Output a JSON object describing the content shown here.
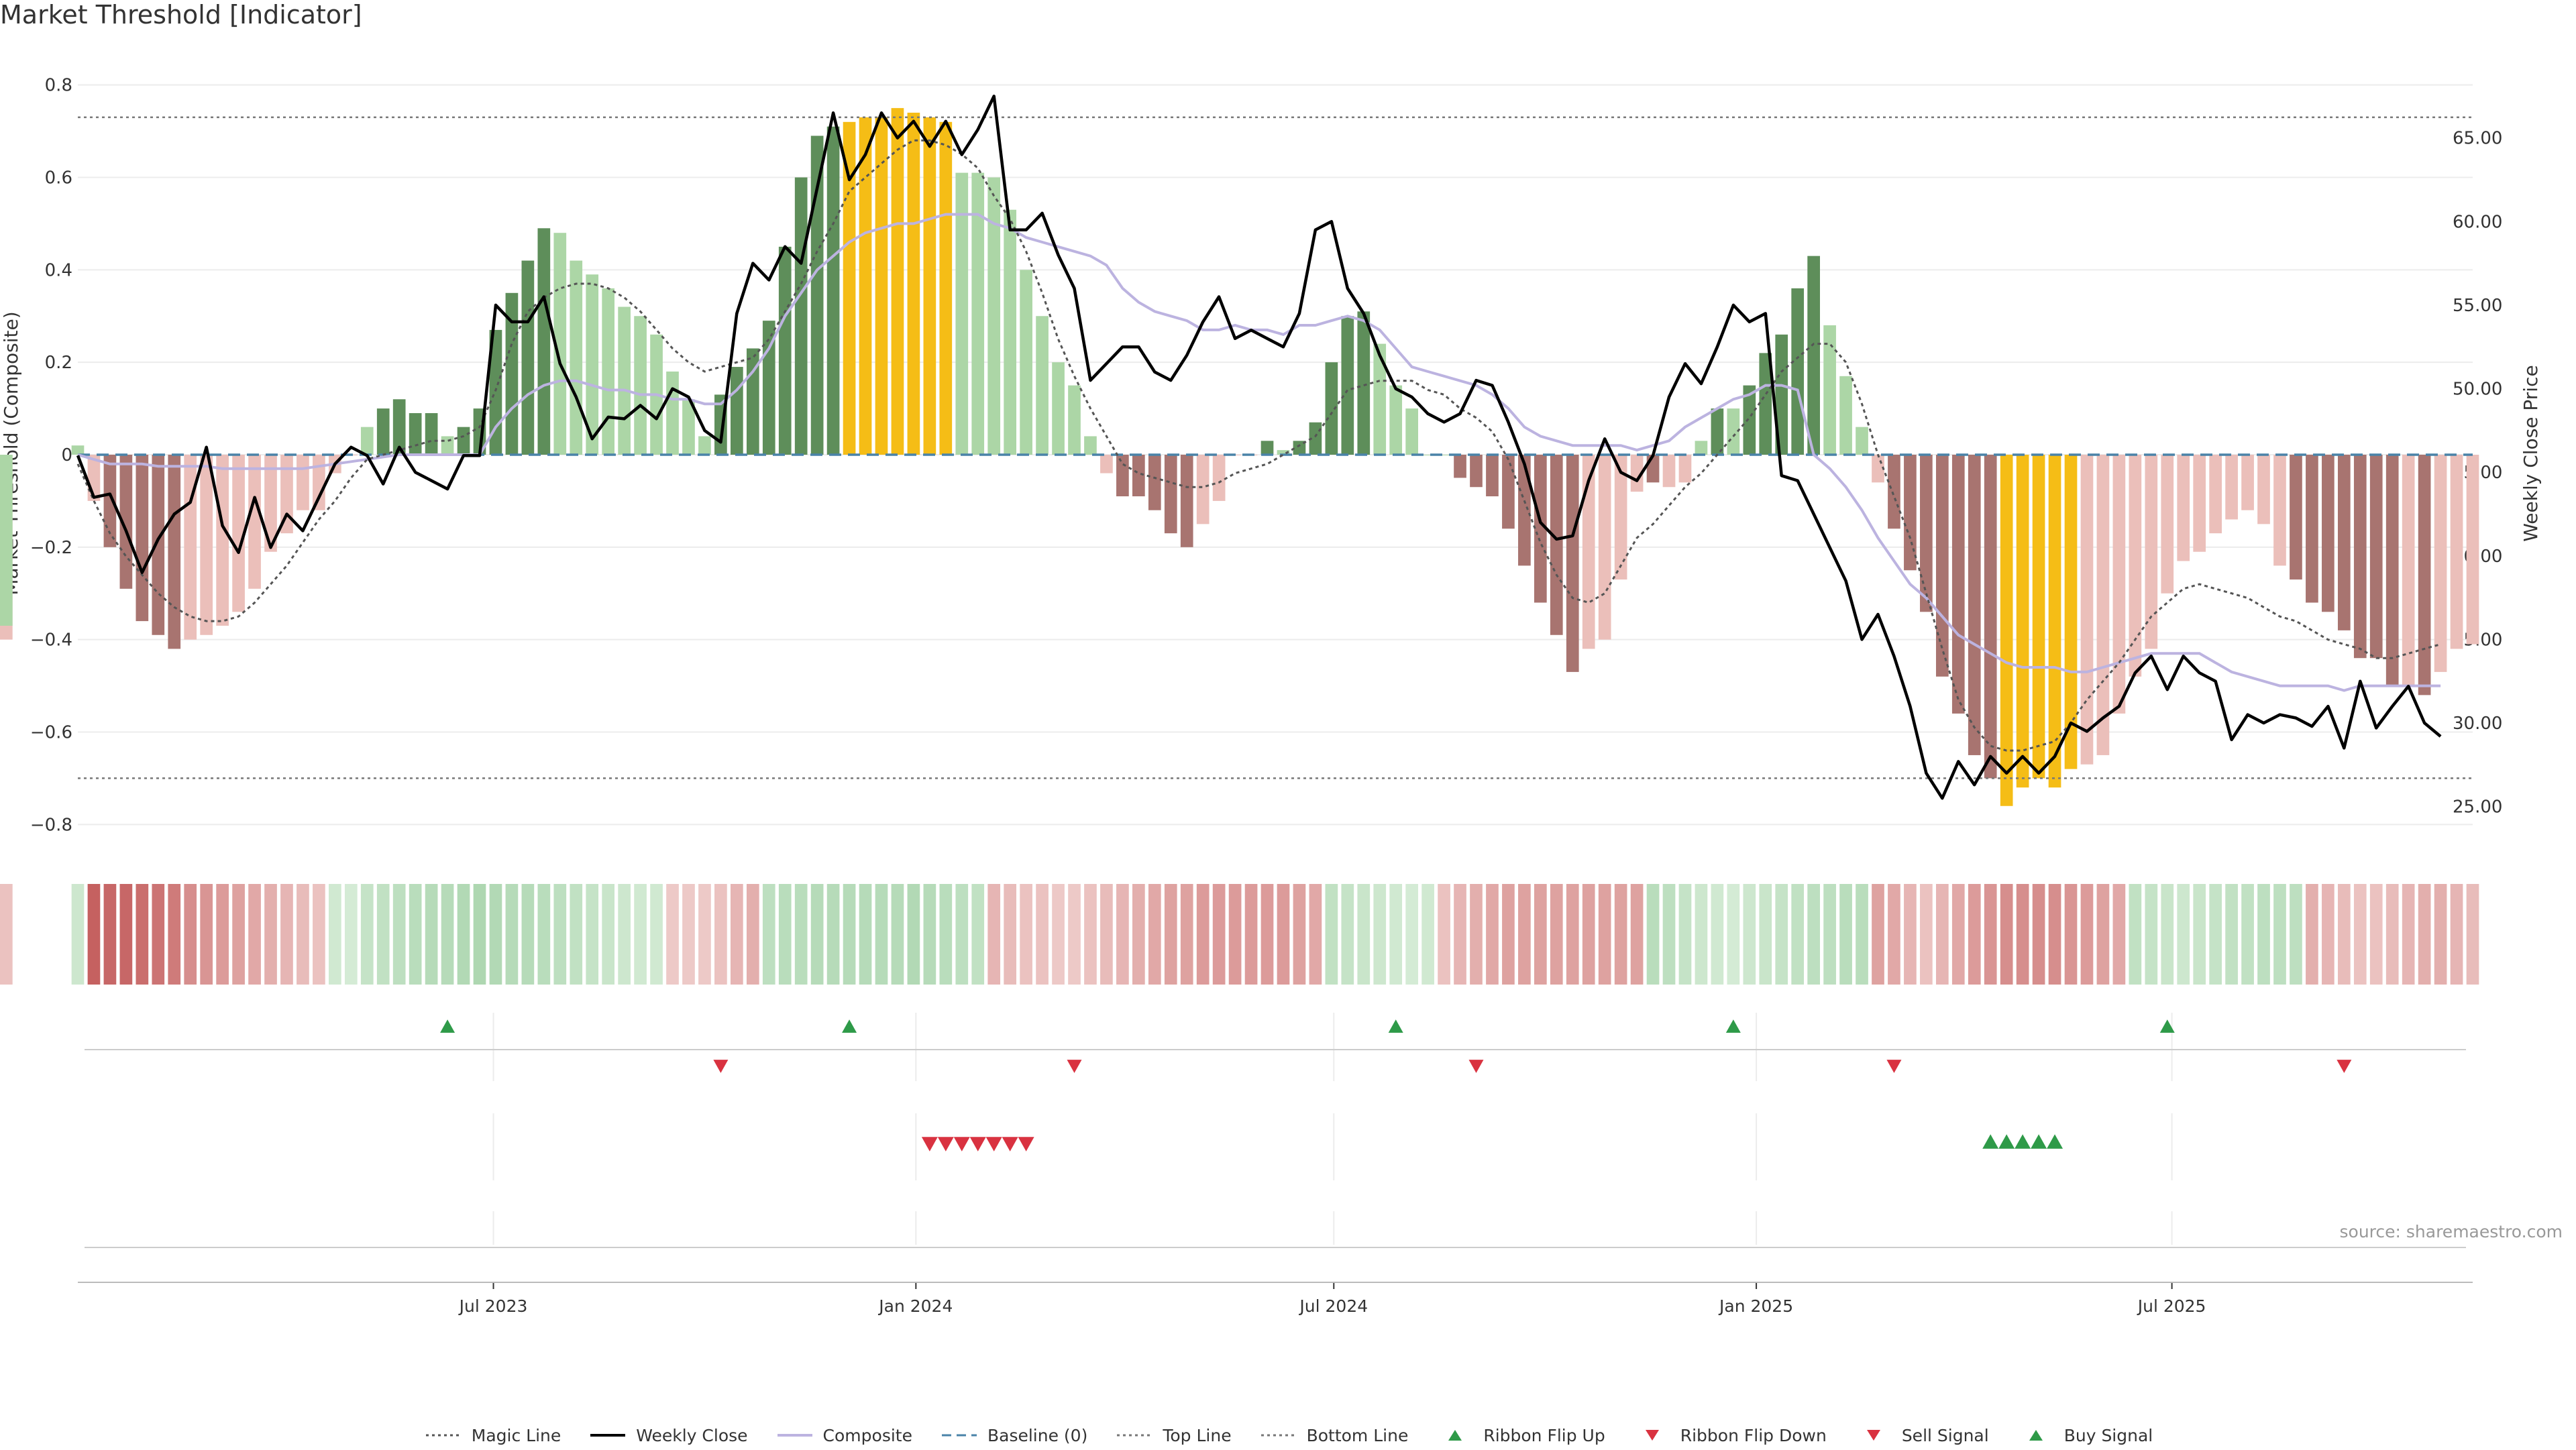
{
  "title": "Market Threshold [Indicator]",
  "source": "source: sharemaestro.com",
  "colors": {
    "strong_pos": "#5e8e5a",
    "weak_pos": "#acd6a6",
    "strong_neg": "#a87470",
    "weak_neg": "#ebbfba",
    "extreme": "#f5bd16",
    "magic": "#555555",
    "weekly": "#000000",
    "composite": "#bcb3e0",
    "baseline": "#4a83a8",
    "threshold": "#777777",
    "flip_up": "#2e9a48",
    "flip_down": "#d93240",
    "sell": "#d93240",
    "buy": "#2e9a48",
    "grid": "#ececec"
  },
  "legend": [
    {
      "key": "magic",
      "label": "Magic Line",
      "symbol": "dotted"
    },
    {
      "key": "weekly",
      "label": "Weekly Close",
      "symbol": "solid"
    },
    {
      "key": "composite",
      "label": "Composite",
      "symbol": "solid"
    },
    {
      "key": "baseline",
      "label": "Baseline (0)",
      "symbol": "dashed"
    },
    {
      "key": "threshold",
      "label": "Top Line",
      "symbol": "dotted"
    },
    {
      "key": "threshold",
      "label": "Bottom Line",
      "symbol": "dotted"
    },
    {
      "key": "flip_up",
      "label": "Ribbon Flip Up",
      "symbol": "tri-up"
    },
    {
      "key": "flip_down",
      "label": "Ribbon Flip Down",
      "symbol": "tri-down"
    },
    {
      "key": "sell",
      "label": "Sell Signal",
      "symbol": "tri-down"
    },
    {
      "key": "buy",
      "label": "Buy Signal",
      "symbol": "tri-up"
    }
  ],
  "chart_data": {
    "type": "bar",
    "title": "Market Threshold [Indicator]",
    "ylabel": "Market Threshold (Composite)",
    "y2label": "Weekly Close Price",
    "ylim": [
      -0.83,
      0.83
    ],
    "y2lim": [
      23.1,
      69.0
    ],
    "yticks": [
      0.8,
      0.6,
      0.4,
      0.2,
      0,
      -0.2,
      -0.4,
      -0.6,
      -0.8
    ],
    "ytick_labels": [
      "0.8",
      "0.6",
      "0.4",
      "0.2",
      "0",
      "−0.2",
      "−0.4",
      "−0.6",
      "−0.8"
    ],
    "y2ticks": [
      65,
      60,
      55,
      50,
      45,
      40,
      35,
      30,
      25
    ],
    "y2tick_labels": [
      "65.00",
      "60.00",
      "55.00",
      "50.00",
      "45.00",
      "40.00",
      "35.00",
      "30.00",
      "25.00"
    ],
    "top_line": 0.73,
    "bottom_line": -0.7,
    "grid": true,
    "legend_position": "bottom",
    "x_start": "2023-01-01",
    "x_end": "2025-11-09",
    "xticks": [
      "2023-07-01",
      "2024-01-01",
      "2024-07-01",
      "2025-01-01",
      "2025-07-01"
    ],
    "xtick_labels": [
      "Jul 2023",
      "Jan 2024",
      "Jul 2024",
      "Jan 2025",
      "Jul 2025"
    ],
    "dates": [
      "2023-01-01",
      "2023-01-08",
      "2023-01-15",
      "2023-01-22",
      "2023-01-29",
      "2023-02-05",
      "2023-02-12",
      "2023-02-19",
      "2023-02-26",
      "2023-03-05",
      "2023-03-12",
      "2023-03-19",
      "2023-03-26",
      "2023-04-02",
      "2023-04-09",
      "2023-04-16",
      "2023-04-23",
      "2023-04-30",
      "2023-05-07",
      "2023-05-14",
      "2023-05-21",
      "2023-05-28",
      "2023-06-04",
      "2023-06-11",
      "2023-06-18",
      "2023-06-25",
      "2023-07-02",
      "2023-07-09",
      "2023-07-16",
      "2023-07-23",
      "2023-07-30",
      "2023-08-06",
      "2023-08-13",
      "2023-08-20",
      "2023-08-27",
      "2023-09-03",
      "2023-09-10",
      "2023-09-17",
      "2023-09-24",
      "2023-10-01",
      "2023-10-08",
      "2023-10-15",
      "2023-10-22",
      "2023-10-29",
      "2023-11-05",
      "2023-11-12",
      "2023-11-19",
      "2023-11-26",
      "2023-12-03",
      "2023-12-10",
      "2023-12-17",
      "2023-12-24",
      "2023-12-31",
      "2024-01-07",
      "2024-01-14",
      "2024-01-21",
      "2024-01-28",
      "2024-02-04",
      "2024-02-11",
      "2024-02-18",
      "2024-02-25",
      "2024-03-03",
      "2024-03-10",
      "2024-03-17",
      "2024-03-24",
      "2024-03-31",
      "2024-04-07",
      "2024-04-14",
      "2024-04-21",
      "2024-04-28",
      "2024-05-05",
      "2024-05-12",
      "2024-05-19",
      "2024-05-26",
      "2024-06-02",
      "2024-06-09",
      "2024-06-16",
      "2024-06-23",
      "2024-06-30",
      "2024-07-07",
      "2024-07-14",
      "2024-07-21",
      "2024-07-28",
      "2024-08-04",
      "2024-08-11",
      "2024-08-18",
      "2024-08-25",
      "2024-09-01",
      "2024-09-08",
      "2024-09-15",
      "2024-09-22",
      "2024-09-29",
      "2024-10-06",
      "2024-10-13",
      "2024-10-20",
      "2024-10-27",
      "2024-11-03",
      "2024-11-10",
      "2024-11-17",
      "2024-11-24",
      "2024-12-01",
      "2024-12-08",
      "2024-12-15",
      "2024-12-22",
      "2024-12-29",
      "2025-01-05",
      "2025-01-12",
      "2025-01-19",
      "2025-01-26",
      "2025-02-02",
      "2025-02-09",
      "2025-02-16",
      "2025-02-23",
      "2025-03-02",
      "2025-03-09",
      "2025-03-16",
      "2025-03-23",
      "2025-03-30",
      "2025-04-06",
      "2025-04-13",
      "2025-04-20",
      "2025-04-27",
      "2025-05-04",
      "2025-05-11",
      "2025-05-18",
      "2025-05-25",
      "2025-06-01",
      "2025-06-08",
      "2025-06-15",
      "2025-06-22",
      "2025-06-29",
      "2025-07-06",
      "2025-07-13",
      "2025-07-20",
      "2025-07-27",
      "2025-08-03",
      "2025-08-10",
      "2025-08-17",
      "2025-08-24",
      "2025-08-31",
      "2025-09-07",
      "2025-09-14",
      "2025-09-21",
      "2025-09-28",
      "2025-10-05",
      "2025-10-12",
      "2025-10-19",
      "2025-10-26",
      "2025-11-02",
      "2025-11-09"
    ],
    "composite_bars": [
      0.02,
      -0.1,
      -0.2,
      -0.29,
      -0.36,
      -0.39,
      -0.42,
      -0.4,
      -0.39,
      -0.37,
      -0.34,
      -0.29,
      -0.21,
      -0.17,
      -0.12,
      -0.12,
      -0.04,
      0.0,
      0.06,
      0.1,
      0.12,
      0.09,
      0.09,
      0.04,
      0.06,
      0.1,
      0.27,
      0.35,
      0.42,
      0.49,
      0.48,
      0.42,
      0.39,
      0.36,
      0.32,
      0.3,
      0.26,
      0.18,
      0.12,
      0.04,
      0.13,
      0.19,
      0.23,
      0.29,
      0.45,
      0.6,
      0.69,
      0.71,
      0.72,
      0.73,
      0.73,
      0.75,
      0.74,
      0.73,
      0.72,
      0.61,
      0.61,
      0.6,
      0.53,
      0.4,
      0.3,
      0.2,
      0.15,
      0.04,
      -0.04,
      -0.09,
      -0.09,
      -0.12,
      -0.17,
      -0.2,
      -0.15,
      -0.1,
      0.0,
      0.0,
      0.03,
      0.01,
      0.03,
      0.07,
      0.2,
      0.3,
      0.31,
      0.24,
      0.15,
      0.1,
      0.0,
      0.0,
      -0.05,
      -0.07,
      -0.09,
      -0.16,
      -0.24,
      -0.32,
      -0.39,
      -0.47,
      -0.42,
      -0.4,
      -0.27,
      -0.08,
      -0.06,
      -0.07,
      -0.06,
      0.03,
      0.1,
      0.1,
      0.15,
      0.22,
      0.26,
      0.36,
      0.43,
      0.28,
      0.17,
      0.06,
      -0.06,
      -0.16,
      -0.25,
      -0.34,
      -0.48,
      -0.56,
      -0.65,
      -0.7,
      -0.76,
      -0.72,
      -0.7,
      -0.72,
      -0.68,
      -0.67,
      -0.65,
      -0.56,
      -0.48,
      -0.42,
      -0.3,
      -0.23,
      -0.21,
      -0.17,
      -0.14,
      -0.12,
      -0.15,
      -0.24,
      -0.27,
      -0.32,
      -0.34,
      -0.38,
      -0.44,
      -0.44,
      -0.5,
      -0.5,
      -0.52,
      -0.47,
      -0.42,
      -0.41,
      -0.4,
      -0.37
    ],
    "bar_classes": [
      "wp",
      "wn",
      "sn",
      "sn",
      "sn",
      "sn",
      "sn",
      "wn",
      "wn",
      "wn",
      "wn",
      "wn",
      "wn",
      "wn",
      "wn",
      "wn",
      "wn",
      "wn",
      "wp",
      "sp",
      "sp",
      "sp",
      "sp",
      "wp",
      "sp",
      "sp",
      "sp",
      "sp",
      "sp",
      "sp",
      "wp",
      "wp",
      "wp",
      "wp",
      "wp",
      "wp",
      "wp",
      "wp",
      "wp",
      "wp",
      "sp",
      "sp",
      "sp",
      "sp",
      "sp",
      "sp",
      "sp",
      "sp",
      "ex",
      "ex",
      "ex",
      "ex",
      "ex",
      "ex",
      "ex",
      "wp",
      "wp",
      "wp",
      "wp",
      "wp",
      "wp",
      "wp",
      "wp",
      "wp",
      "wn",
      "sn",
      "sn",
      "sn",
      "sn",
      "sn",
      "wn",
      "wn",
      "wn",
      "wn",
      "sp",
      "wp",
      "sp",
      "sp",
      "sp",
      "sp",
      "sp",
      "wp",
      "wp",
      "wp",
      "wp",
      "wp",
      "sn",
      "sn",
      "sn",
      "sn",
      "sn",
      "sn",
      "sn",
      "sn",
      "wn",
      "wn",
      "wn",
      "wn",
      "sn",
      "wn",
      "wn",
      "wp",
      "sp",
      "wp",
      "sp",
      "sp",
      "sp",
      "sp",
      "sp",
      "wp",
      "wp",
      "wp",
      "wn",
      "sn",
      "sn",
      "sn",
      "sn",
      "sn",
      "sn",
      "sn",
      "ex",
      "ex",
      "ex",
      "ex",
      "ex",
      "wn",
      "wn",
      "wn",
      "wn",
      "wn",
      "wn",
      "wn",
      "wn",
      "wn",
      "wn",
      "wn",
      "wn",
      "wn",
      "sn",
      "sn",
      "sn",
      "sn",
      "sn",
      "sn",
      "sn",
      "wn",
      "sn",
      "wn",
      "wn",
      "wn",
      "wn"
    ],
    "weekly_close": [
      46.0,
      43.5,
      43.7,
      41.5,
      39.0,
      41.0,
      42.5,
      43.2,
      46.5,
      41.8,
      40.2,
      43.5,
      40.5,
      42.5,
      41.5,
      43.5,
      45.5,
      46.5,
      46.0,
      44.3,
      46.5,
      45.0,
      44.5,
      44.0,
      46.0,
      46.0,
      55.0,
      54.0,
      54.0,
      55.5,
      51.5,
      49.5,
      47.0,
      48.3,
      48.2,
      49.0,
      48.2,
      50.0,
      49.5,
      47.5,
      46.8,
      54.5,
      57.5,
      56.5,
      58.5,
      57.5,
      62.0,
      66.5,
      62.5,
      64.0,
      66.5,
      65.0,
      66.0,
      64.5,
      66.0,
      64.0,
      65.5,
      67.5,
      59.5,
      59.5,
      60.5,
      58.0,
      56.0,
      50.5,
      51.5,
      52.5,
      52.5,
      51.0,
      50.5,
      52.0,
      54.0,
      55.5,
      53.0,
      53.5,
      53.0,
      52.5,
      54.5,
      59.5,
      60.0,
      56.0,
      54.5,
      52.0,
      50.0,
      49.5,
      48.5,
      48.0,
      48.5,
      50.5,
      50.2,
      48.0,
      45.5,
      42.0,
      41.0,
      41.2,
      44.5,
      47.0,
      45.0,
      44.5,
      46.0,
      49.5,
      51.5,
      50.3,
      52.5,
      55.0,
      54.0,
      54.5,
      44.8,
      44.5,
      42.5,
      40.5,
      38.5,
      35.0,
      36.5,
      34.0,
      31.0,
      27.0,
      25.5,
      27.7,
      26.3,
      28.0,
      27.0,
      28.0,
      27.0,
      28.0,
      30.0,
      29.5,
      30.3,
      31.0,
      33.0,
      34.0,
      32.0,
      34.0,
      33.0,
      32.5,
      29.0,
      30.5,
      30.0,
      30.5,
      30.3,
      29.8,
      31.0,
      28.5,
      32.5,
      29.7,
      31.0,
      32.2,
      30.0,
      29.2
    ],
    "composite_line": [
      0.0,
      -0.01,
      -0.02,
      -0.02,
      -0.02,
      -0.025,
      -0.025,
      -0.025,
      -0.025,
      -0.03,
      -0.03,
      -0.03,
      -0.03,
      -0.03,
      -0.03,
      -0.025,
      -0.02,
      -0.015,
      -0.01,
      -0.005,
      0.0,
      0.0,
      0.0,
      0.0,
      0.0,
      0.0,
      0.06,
      0.1,
      0.13,
      0.15,
      0.16,
      0.16,
      0.15,
      0.14,
      0.14,
      0.13,
      0.13,
      0.12,
      0.12,
      0.11,
      0.11,
      0.14,
      0.18,
      0.23,
      0.3,
      0.35,
      0.4,
      0.43,
      0.46,
      0.48,
      0.49,
      0.5,
      0.5,
      0.51,
      0.52,
      0.52,
      0.52,
      0.5,
      0.49,
      0.47,
      0.46,
      0.45,
      0.44,
      0.43,
      0.41,
      0.36,
      0.33,
      0.31,
      0.3,
      0.29,
      0.27,
      0.27,
      0.28,
      0.27,
      0.27,
      0.26,
      0.28,
      0.28,
      0.29,
      0.3,
      0.29,
      0.27,
      0.23,
      0.19,
      0.18,
      0.17,
      0.16,
      0.15,
      0.13,
      0.1,
      0.06,
      0.04,
      0.03,
      0.02,
      0.02,
      0.02,
      0.02,
      0.01,
      0.02,
      0.03,
      0.06,
      0.08,
      0.1,
      0.12,
      0.13,
      0.15,
      0.15,
      0.14,
      0.0,
      -0.03,
      -0.07,
      -0.12,
      -0.18,
      -0.23,
      -0.28,
      -0.31,
      -0.35,
      -0.39,
      -0.41,
      -0.43,
      -0.45,
      -0.46,
      -0.46,
      -0.46,
      -0.47,
      -0.47,
      -0.46,
      -0.45,
      -0.44,
      -0.43,
      -0.43,
      -0.43,
      -0.43,
      -0.45,
      -0.47,
      -0.48,
      -0.49,
      -0.5,
      -0.5,
      -0.5,
      -0.5,
      -0.51,
      -0.5,
      -0.5,
      -0.5,
      -0.5,
      -0.5,
      -0.5
    ],
    "magic_line": [
      -0.02,
      -0.1,
      -0.17,
      -0.22,
      -0.26,
      -0.3,
      -0.33,
      -0.35,
      -0.36,
      -0.36,
      -0.35,
      -0.32,
      -0.28,
      -0.24,
      -0.19,
      -0.14,
      -0.1,
      -0.05,
      -0.01,
      0.0,
      0.01,
      0.02,
      0.03,
      0.03,
      0.04,
      0.06,
      0.14,
      0.24,
      0.31,
      0.34,
      0.36,
      0.37,
      0.37,
      0.36,
      0.34,
      0.31,
      0.27,
      0.23,
      0.2,
      0.18,
      0.19,
      0.2,
      0.21,
      0.25,
      0.31,
      0.37,
      0.44,
      0.5,
      0.57,
      0.6,
      0.63,
      0.66,
      0.68,
      0.68,
      0.67,
      0.65,
      0.62,
      0.56,
      0.51,
      0.44,
      0.35,
      0.25,
      0.17,
      0.1,
      0.04,
      -0.02,
      -0.04,
      -0.05,
      -0.06,
      -0.07,
      -0.07,
      -0.06,
      -0.04,
      -0.03,
      -0.02,
      0.0,
      0.02,
      0.04,
      0.09,
      0.14,
      0.15,
      0.16,
      0.16,
      0.16,
      0.14,
      0.13,
      0.1,
      0.08,
      0.05,
      -0.01,
      -0.1,
      -0.19,
      -0.26,
      -0.31,
      -0.32,
      -0.3,
      -0.24,
      -0.18,
      -0.15,
      -0.11,
      -0.07,
      -0.04,
      0.0,
      0.04,
      0.08,
      0.13,
      0.18,
      0.21,
      0.24,
      0.24,
      0.2,
      0.11,
      0.0,
      -0.09,
      -0.18,
      -0.3,
      -0.42,
      -0.53,
      -0.59,
      -0.63,
      -0.64,
      -0.64,
      -0.63,
      -0.62,
      -0.58,
      -0.53,
      -0.49,
      -0.45,
      -0.4,
      -0.35,
      -0.32,
      -0.29,
      -0.28,
      -0.29,
      -0.3,
      -0.31,
      -0.33,
      -0.35,
      -0.36,
      -0.38,
      -0.4,
      -0.41,
      -0.42,
      -0.44,
      -0.44,
      -0.43,
      -0.42,
      -0.41
    ],
    "ribbon_intensity": [
      0.2,
      0.95,
      0.9,
      0.9,
      0.85,
      0.8,
      0.75,
      0.6,
      0.55,
      0.5,
      0.45,
      0.4,
      0.35,
      0.3,
      0.25,
      0.2,
      0.15,
      0.1,
      0.3,
      0.35,
      0.4,
      0.45,
      0.5,
      0.5,
      0.55,
      0.6,
      0.55,
      0.5,
      0.5,
      0.45,
      0.4,
      0.35,
      0.3,
      0.25,
      0.2,
      0.15,
      0.15,
      0.15,
      0.15,
      0.15,
      0.2,
      0.3,
      0.35,
      0.4,
      0.45,
      0.45,
      0.5,
      0.5,
      0.5,
      0.5,
      0.5,
      0.5,
      0.55,
      0.5,
      0.45,
      0.4,
      0.35,
      0.3,
      0.25,
      0.2,
      0.2,
      0.15,
      0.15,
      0.2,
      0.25,
      0.3,
      0.35,
      0.4,
      0.45,
      0.45,
      0.5,
      0.5,
      0.5,
      0.5,
      0.5,
      0.5,
      0.45,
      0.4,
      0.35,
      0.3,
      0.25,
      0.2,
      0.15,
      0.1,
      0.15,
      0.2,
      0.3,
      0.35,
      0.4,
      0.45,
      0.45,
      0.45,
      0.45,
      0.45,
      0.45,
      0.45,
      0.45,
      0.45,
      0.45,
      0.4,
      0.3,
      0.2,
      0.15,
      0.1,
      0.2,
      0.25,
      0.3,
      0.35,
      0.4,
      0.4,
      0.45,
      0.45,
      0.45,
      0.4,
      0.3,
      0.2,
      0.3,
      0.4,
      0.5,
      0.55,
      0.6,
      0.6,
      0.6,
      0.6,
      0.55,
      0.5,
      0.45,
      0.4,
      0.35,
      0.3,
      0.25,
      0.2,
      0.25,
      0.3,
      0.35,
      0.35,
      0.4,
      0.4,
      0.4,
      0.35,
      0.3,
      0.25,
      0.2,
      0.2,
      0.25,
      0.3,
      0.35,
      0.35,
      0.3,
      0.25,
      0.2
    ],
    "ribbon_sign": [
      1,
      -1,
      -1,
      -1,
      -1,
      -1,
      -1,
      -1,
      -1,
      -1,
      -1,
      -1,
      -1,
      -1,
      -1,
      -1,
      1,
      1,
      1,
      1,
      1,
      1,
      1,
      1,
      1,
      1,
      1,
      1,
      1,
      1,
      1,
      1,
      1,
      1,
      1,
      1,
      1,
      -1,
      -1,
      -1,
      -1,
      -1,
      -1,
      1,
      1,
      1,
      1,
      1,
      1,
      1,
      1,
      1,
      1,
      1,
      1,
      1,
      1,
      -1,
      -1,
      -1,
      -1,
      -1,
      -1,
      -1,
      -1,
      -1,
      -1,
      -1,
      -1,
      -1,
      -1,
      -1,
      -1,
      -1,
      -1,
      -1,
      -1,
      -1,
      1,
      1,
      1,
      1,
      1,
      1,
      1,
      -1,
      -1,
      -1,
      -1,
      -1,
      -1,
      -1,
      -1,
      -1,
      -1,
      -1,
      -1,
      -1,
      1,
      1,
      1,
      1,
      1,
      1,
      1,
      1,
      1,
      1,
      1,
      1,
      1,
      1,
      -1,
      -1,
      -1,
      -1,
      -1,
      -1,
      -1,
      -1,
      -1,
      -1,
      -1,
      -1,
      -1,
      -1,
      -1,
      -1,
      1,
      1,
      1,
      1,
      1,
      1,
      1,
      1,
      1,
      1,
      1,
      -1,
      -1,
      -1,
      -1,
      -1,
      -1,
      -1,
      -1,
      -1,
      -1
    ],
    "ribbon_flip_up": [
      "2023-06-11",
      "2023-12-03",
      "2024-07-28",
      "2024-12-22",
      "2025-06-29"
    ],
    "ribbon_flip_down": [
      "2023-10-08",
      "2024-03-10",
      "2024-09-01",
      "2025-03-02",
      "2025-09-14"
    ],
    "sell_signal": [
      "2024-01-07",
      "2024-01-14",
      "2024-01-21",
      "2024-01-28",
      "2024-02-04",
      "2024-02-11",
      "2024-02-18"
    ],
    "buy_signal": [
      "2025-04-13",
      "2025-04-20",
      "2025-04-27",
      "2025-05-04",
      "2025-05-11"
    ]
  }
}
